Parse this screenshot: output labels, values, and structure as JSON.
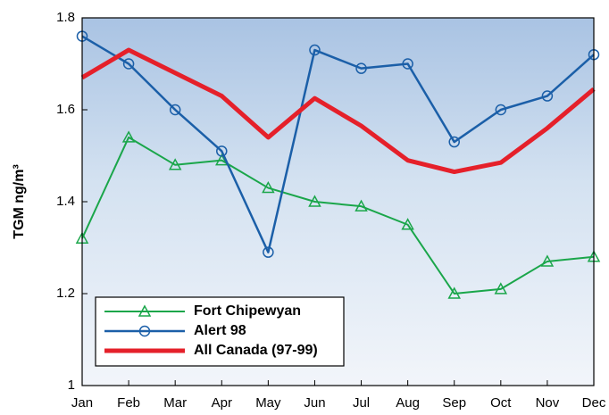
{
  "chart_data": {
    "type": "line",
    "y_label": "TGM ng/m³",
    "categories": [
      "Jan",
      "Feb",
      "Mar",
      "Apr",
      "May",
      "Jun",
      "Jul",
      "Aug",
      "Sep",
      "Oct",
      "Nov",
      "Dec"
    ],
    "series": [
      {
        "name": "Fort Chipewyan",
        "color": "#1aa64a",
        "marker": "triangle",
        "width": 2,
        "values": [
          1.32,
          1.54,
          1.48,
          1.49,
          1.43,
          1.4,
          1.39,
          1.35,
          1.2,
          1.21,
          1.27,
          1.28
        ]
      },
      {
        "name": "Alert 98",
        "color": "#1b5fa8",
        "marker": "circle",
        "width": 2.5,
        "values": [
          1.76,
          1.7,
          1.6,
          1.51,
          1.29,
          1.73,
          1.69,
          1.7,
          1.53,
          1.6,
          1.63,
          1.72
        ]
      },
      {
        "name": "All Canada (97-99)",
        "color": "#e5202a",
        "width": 5,
        "values": [
          1.67,
          1.73,
          1.68,
          1.63,
          1.54,
          1.625,
          1.565,
          1.49,
          1.465,
          1.485,
          1.56,
          1.645
        ]
      }
    ],
    "ylim": [
      1,
      1.8
    ],
    "yticks": [
      1,
      1.2,
      1.4,
      1.6,
      1.8
    ],
    "grid": false,
    "legend": "lower left"
  }
}
